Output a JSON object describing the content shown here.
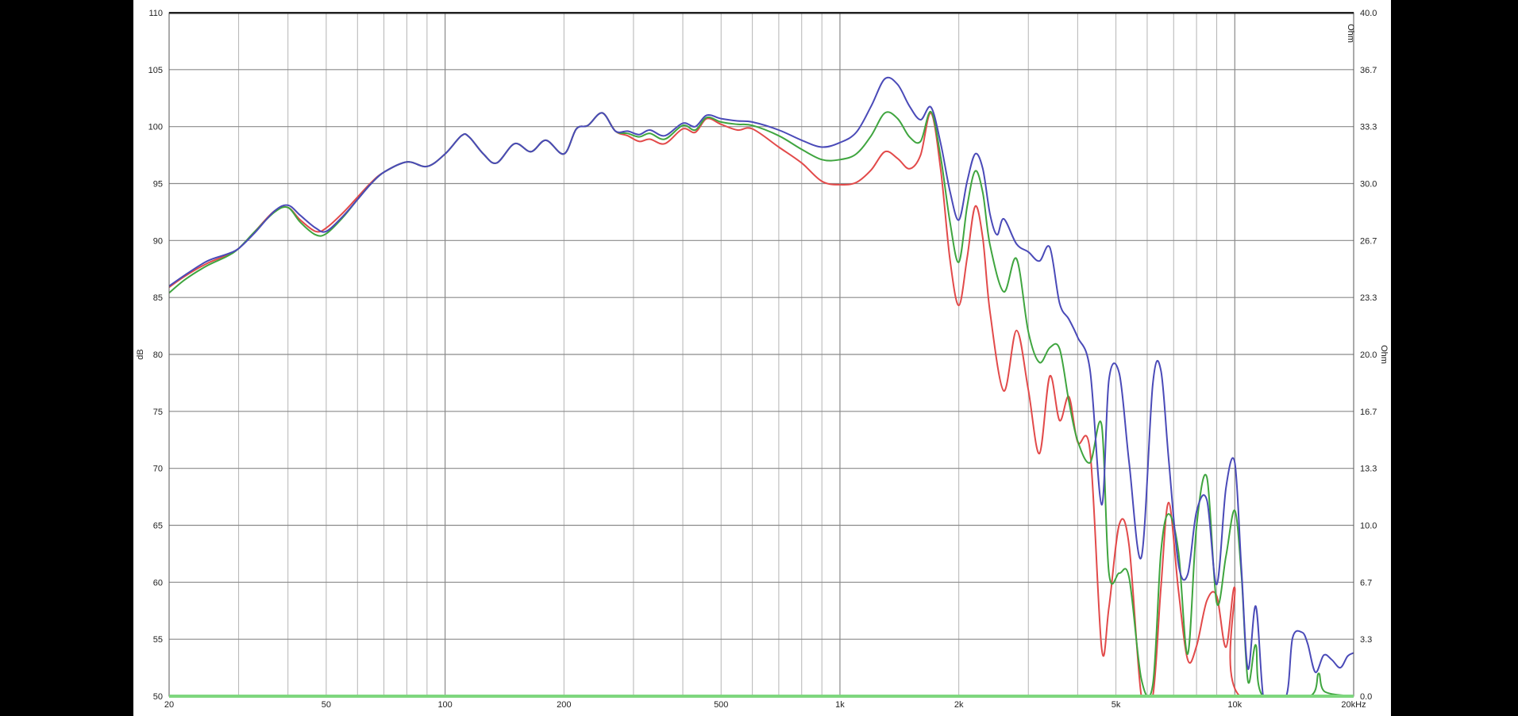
{
  "chart_data": {
    "type": "line",
    "title": "",
    "xlabel": "",
    "ylabel": "dB",
    "y2label": "Ohm",
    "y2unit_corner": "Ohm",
    "x_scale": "log",
    "xlim": [
      20,
      20000
    ],
    "ylim": [
      50,
      110
    ],
    "y2lim": [
      0.0,
      40.0
    ],
    "grid": true,
    "x_ticks": [
      {
        "value": 20,
        "label": "20"
      },
      {
        "value": 50,
        "label": "50"
      },
      {
        "value": 100,
        "label": "100"
      },
      {
        "value": 200,
        "label": "200"
      },
      {
        "value": 500,
        "label": "500"
      },
      {
        "value": 1000,
        "label": "1k"
      },
      {
        "value": 2000,
        "label": "2k"
      },
      {
        "value": 5000,
        "label": "5k"
      },
      {
        "value": 10000,
        "label": "10k"
      },
      {
        "value": 20000,
        "label": "20kHz"
      }
    ],
    "y_ticks": [
      "50",
      "55",
      "60",
      "65",
      "70",
      "75",
      "80",
      "85",
      "90",
      "95",
      "100",
      "105",
      "110"
    ],
    "y2_ticks": [
      "0.0",
      "3.3",
      "6.7",
      "10.0",
      "13.3",
      "16.7",
      "20.0",
      "23.3",
      "26.7",
      "30.0",
      "33.3",
      "36.7",
      "40.0"
    ],
    "series": [
      {
        "color": "#e24a4a",
        "points": [
          [
            20,
            85.9
          ],
          [
            22,
            86.9
          ],
          [
            25,
            88
          ],
          [
            28,
            88.7
          ],
          [
            30,
            89.3
          ],
          [
            33,
            90.8
          ],
          [
            37,
            92.6
          ],
          [
            40,
            92.9
          ],
          [
            43,
            91.8
          ],
          [
            47,
            90.8
          ],
          [
            50,
            91.1
          ],
          [
            55,
            92.4
          ],
          [
            60,
            93.8
          ],
          [
            65,
            95.1
          ],
          [
            70,
            96
          ],
          [
            80,
            96.9
          ],
          [
            90,
            96.5
          ],
          [
            100,
            97.6
          ],
          [
            110,
            99.2
          ],
          [
            115,
            99.1
          ],
          [
            125,
            97.6
          ],
          [
            135,
            96.8
          ],
          [
            150,
            98.5
          ],
          [
            165,
            97.8
          ],
          [
            180,
            98.8
          ],
          [
            200,
            97.6
          ],
          [
            215,
            99.8
          ],
          [
            230,
            100.1
          ],
          [
            250,
            101.2
          ],
          [
            270,
            99.6
          ],
          [
            290,
            99.2
          ],
          [
            310,
            98.7
          ],
          [
            330,
            98.9
          ],
          [
            360,
            98.5
          ],
          [
            400,
            99.8
          ],
          [
            430,
            99.5
          ],
          [
            460,
            100.7
          ],
          [
            500,
            100.2
          ],
          [
            550,
            99.7
          ],
          [
            600,
            99.8
          ],
          [
            700,
            98.2
          ],
          [
            800,
            96.8
          ],
          [
            900,
            95.2
          ],
          [
            1000,
            94.9
          ],
          [
            1100,
            95.1
          ],
          [
            1200,
            96.2
          ],
          [
            1300,
            97.8
          ],
          [
            1400,
            97.2
          ],
          [
            1500,
            96.3
          ],
          [
            1600,
            97.5
          ],
          [
            1700,
            101.2
          ],
          [
            1800,
            96.2
          ],
          [
            1900,
            88.3
          ],
          [
            2000,
            84.3
          ],
          [
            2100,
            88.5
          ],
          [
            2200,
            93
          ],
          [
            2300,
            90.2
          ],
          [
            2400,
            83.7
          ],
          [
            2600,
            76.8
          ],
          [
            2800,
            82.1
          ],
          [
            3000,
            76.9
          ],
          [
            3200,
            71.3
          ],
          [
            3400,
            78.1
          ],
          [
            3600,
            74.2
          ],
          [
            3800,
            76.3
          ],
          [
            4000,
            72.3
          ],
          [
            4300,
            71.5
          ],
          [
            4600,
            54.2
          ],
          [
            4800,
            57.8
          ],
          [
            5100,
            65.1
          ],
          [
            5400,
            63.2
          ],
          [
            5800,
            50
          ],
          [
            6200,
            50
          ],
          [
            6500,
            59.5
          ],
          [
            6800,
            67
          ],
          [
            7200,
            59.3
          ],
          [
            7600,
            53.2
          ],
          [
            8000,
            54.4
          ],
          [
            8500,
            58.4
          ],
          [
            9000,
            58.8
          ],
          [
            9500,
            54.3
          ],
          [
            10000,
            59.5
          ],
          [
            10300,
            50
          ],
          [
            20000,
            50
          ]
        ]
      },
      {
        "color": "#3fa53f",
        "points": [
          [
            20,
            85.4
          ],
          [
            22,
            86.6
          ],
          [
            25,
            87.8
          ],
          [
            28,
            88.6
          ],
          [
            30,
            89.3
          ],
          [
            33,
            90.8
          ],
          [
            37,
            92.5
          ],
          [
            40,
            92.9
          ],
          [
            43,
            91.6
          ],
          [
            47,
            90.5
          ],
          [
            50,
            90.6
          ],
          [
            55,
            92
          ],
          [
            60,
            93.6
          ],
          [
            65,
            95
          ],
          [
            70,
            96
          ],
          [
            80,
            96.9
          ],
          [
            90,
            96.5
          ],
          [
            100,
            97.6
          ],
          [
            110,
            99.2
          ],
          [
            115,
            99.1
          ],
          [
            125,
            97.6
          ],
          [
            135,
            96.8
          ],
          [
            150,
            98.5
          ],
          [
            165,
            97.8
          ],
          [
            180,
            98.8
          ],
          [
            200,
            97.6
          ],
          [
            215,
            99.8
          ],
          [
            230,
            100.1
          ],
          [
            250,
            101.2
          ],
          [
            270,
            99.6
          ],
          [
            290,
            99.4
          ],
          [
            310,
            99.1
          ],
          [
            330,
            99.4
          ],
          [
            360,
            98.9
          ],
          [
            400,
            100.1
          ],
          [
            430,
            99.7
          ],
          [
            460,
            100.8
          ],
          [
            500,
            100.4
          ],
          [
            550,
            100.2
          ],
          [
            600,
            100.1
          ],
          [
            700,
            99.2
          ],
          [
            800,
            98
          ],
          [
            900,
            97.1
          ],
          [
            1000,
            97.1
          ],
          [
            1100,
            97.6
          ],
          [
            1200,
            99.2
          ],
          [
            1300,
            101.2
          ],
          [
            1400,
            100.7
          ],
          [
            1500,
            99.1
          ],
          [
            1600,
            98.7
          ],
          [
            1700,
            101.3
          ],
          [
            1800,
            97.3
          ],
          [
            1900,
            91.6
          ],
          [
            2000,
            88.1
          ],
          [
            2100,
            93
          ],
          [
            2200,
            96.1
          ],
          [
            2300,
            94.2
          ],
          [
            2400,
            89.6
          ],
          [
            2600,
            85.5
          ],
          [
            2800,
            88.4
          ],
          [
            3000,
            82
          ],
          [
            3200,
            79.3
          ],
          [
            3400,
            80.6
          ],
          [
            3600,
            80.5
          ],
          [
            3800,
            75.9
          ],
          [
            4000,
            72.4
          ],
          [
            4300,
            70.5
          ],
          [
            4600,
            73.8
          ],
          [
            4800,
            60.8
          ],
          [
            5100,
            60.8
          ],
          [
            5400,
            60.4
          ],
          [
            5800,
            51.5
          ],
          [
            6200,
            51
          ],
          [
            6500,
            62.6
          ],
          [
            6800,
            66
          ],
          [
            7200,
            62.7
          ],
          [
            7600,
            53.7
          ],
          [
            8000,
            64.9
          ],
          [
            8500,
            69.2
          ],
          [
            9000,
            58.2
          ],
          [
            9500,
            62.3
          ],
          [
            10000,
            66.3
          ],
          [
            10400,
            60.5
          ],
          [
            10800,
            51.3
          ],
          [
            11300,
            54.5
          ],
          [
            11800,
            50
          ],
          [
            15500,
            50
          ],
          [
            16300,
            52
          ],
          [
            16900,
            50.4
          ],
          [
            20000,
            50
          ]
        ]
      },
      {
        "color": "#4a4ab8",
        "points": [
          [
            20,
            86
          ],
          [
            22,
            87
          ],
          [
            25,
            88.2
          ],
          [
            28,
            88.8
          ],
          [
            30,
            89.3
          ],
          [
            33,
            90.7
          ],
          [
            37,
            92.6
          ],
          [
            40,
            93.1
          ],
          [
            43,
            92.2
          ],
          [
            47,
            91.1
          ],
          [
            50,
            90.8
          ],
          [
            55,
            92.1
          ],
          [
            60,
            93.6
          ],
          [
            65,
            95
          ],
          [
            70,
            96
          ],
          [
            80,
            96.9
          ],
          [
            90,
            96.5
          ],
          [
            100,
            97.6
          ],
          [
            110,
            99.2
          ],
          [
            115,
            99.1
          ],
          [
            125,
            97.6
          ],
          [
            135,
            96.8
          ],
          [
            150,
            98.5
          ],
          [
            165,
            97.8
          ],
          [
            180,
            98.8
          ],
          [
            200,
            97.6
          ],
          [
            215,
            99.8
          ],
          [
            230,
            100.1
          ],
          [
            250,
            101.2
          ],
          [
            270,
            99.6
          ],
          [
            290,
            99.6
          ],
          [
            310,
            99.3
          ],
          [
            330,
            99.7
          ],
          [
            360,
            99.2
          ],
          [
            400,
            100.3
          ],
          [
            430,
            100
          ],
          [
            460,
            101
          ],
          [
            500,
            100.7
          ],
          [
            550,
            100.5
          ],
          [
            600,
            100.4
          ],
          [
            700,
            99.7
          ],
          [
            800,
            98.8
          ],
          [
            900,
            98.2
          ],
          [
            1000,
            98.6
          ],
          [
            1100,
            99.5
          ],
          [
            1200,
            101.8
          ],
          [
            1300,
            104.2
          ],
          [
            1400,
            103.7
          ],
          [
            1500,
            101.8
          ],
          [
            1600,
            100.6
          ],
          [
            1700,
            101.7
          ],
          [
            1800,
            98.5
          ],
          [
            1900,
            94.3
          ],
          [
            2000,
            91.8
          ],
          [
            2100,
            95.2
          ],
          [
            2200,
            97.6
          ],
          [
            2300,
            96.3
          ],
          [
            2400,
            92.3
          ],
          [
            2500,
            90.5
          ],
          [
            2600,
            91.9
          ],
          [
            2800,
            89.7
          ],
          [
            3000,
            89
          ],
          [
            3200,
            88.2
          ],
          [
            3400,
            89.4
          ],
          [
            3600,
            84.5
          ],
          [
            3800,
            83.1
          ],
          [
            4000,
            81.5
          ],
          [
            4300,
            78.6
          ],
          [
            4600,
            66.8
          ],
          [
            4800,
            77.8
          ],
          [
            5100,
            78.3
          ],
          [
            5400,
            70.5
          ],
          [
            5800,
            62.2
          ],
          [
            6200,
            77.4
          ],
          [
            6500,
            78.6
          ],
          [
            6800,
            70.8
          ],
          [
            7200,
            61.6
          ],
          [
            7600,
            60.7
          ],
          [
            8000,
            66.2
          ],
          [
            8500,
            67.2
          ],
          [
            9000,
            59.8
          ],
          [
            9500,
            68.3
          ],
          [
            10000,
            70.5
          ],
          [
            10400,
            61
          ],
          [
            10800,
            52.4
          ],
          [
            11300,
            57.9
          ],
          [
            11800,
            50
          ],
          [
            12300,
            50
          ],
          [
            13500,
            50
          ],
          [
            14000,
            55.1
          ],
          [
            14800,
            55.6
          ],
          [
            15300,
            54.6
          ],
          [
            16000,
            52.1
          ],
          [
            16800,
            53.6
          ],
          [
            17600,
            53.2
          ],
          [
            18500,
            52.5
          ],
          [
            19300,
            53.5
          ],
          [
            20000,
            53.8
          ]
        ]
      }
    ]
  }
}
